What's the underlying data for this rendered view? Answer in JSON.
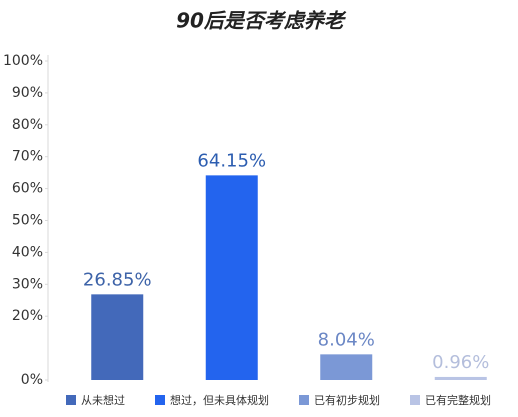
{
  "chart_data": {
    "type": "bar",
    "title": "90后是否考虑养老",
    "categories": [
      "从未想过",
      "想过，但未具体规划",
      "已有初步规划",
      "已有完整规划"
    ],
    "values": [
      26.85,
      64.15,
      8.04,
      0.96
    ],
    "value_labels": [
      "26.85%",
      "64.15%",
      "8.04%",
      "0.96%"
    ],
    "colors": [
      "#4369ba",
      "#2364ee",
      "#7b98d6",
      "#b9c4e5"
    ],
    "label_colors": [
      "#3d63a8",
      "#2c5db0",
      "#6b87c5",
      "#b4bedc"
    ],
    "ylim": [
      0,
      100
    ],
    "yticks": [
      {
        "value": 0,
        "label": "0%"
      },
      {
        "value": 20,
        "label": "20%"
      },
      {
        "value": 30,
        "label": "30%"
      },
      {
        "value": 40,
        "label": "40%"
      },
      {
        "value": 50,
        "label": "50%"
      },
      {
        "value": 60,
        "label": "60%"
      },
      {
        "value": 70,
        "label": "70%"
      },
      {
        "value": 80,
        "label": "80%"
      },
      {
        "value": 90,
        "label": "90%"
      },
      {
        "value": 100,
        "label": "100%"
      }
    ],
    "legend": "bottom"
  }
}
